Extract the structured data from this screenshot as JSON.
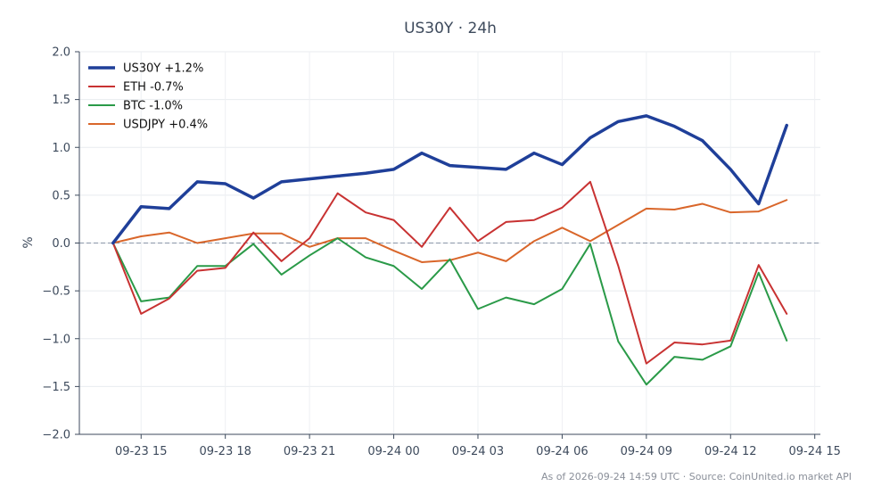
{
  "chart_data": {
    "type": "line",
    "title": "US30Y · 24h",
    "ylabel": "%",
    "xlabel": "",
    "ylim": [
      -2.0,
      2.0
    ],
    "yticks": [
      -2.0,
      -1.5,
      -1.0,
      -0.5,
      0.0,
      0.5,
      1.0,
      1.5,
      2.0
    ],
    "ytick_labels": [
      "−2.0",
      "−1.5",
      "−1.0",
      "−0.5",
      "0.0",
      "0.5",
      "1.0",
      "1.5",
      "2.0"
    ],
    "xlim": [
      "2026-09-23 12:48",
      "2026-09-24 15:12"
    ],
    "xticks": [
      "2026-09-23 15:00",
      "2026-09-23 18:00",
      "2026-09-23 21:00",
      "2026-09-24 00:00",
      "2026-09-24 03:00",
      "2026-09-24 06:00",
      "2026-09-24 09:00",
      "2026-09-24 12:00",
      "2026-09-24 15:00"
    ],
    "xtick_labels": [
      "09-23 15",
      "09-23 18",
      "09-23 21",
      "09-24 00",
      "09-24 03",
      "09-24 06",
      "09-24 09",
      "09-24 12",
      "09-24 15"
    ],
    "x": [
      "2026-09-23 14:00",
      "2026-09-23 15:00",
      "2026-09-23 16:00",
      "2026-09-23 17:00",
      "2026-09-23 18:00",
      "2026-09-23 19:00",
      "2026-09-23 20:00",
      "2026-09-23 21:00",
      "2026-09-23 22:00",
      "2026-09-23 23:00",
      "2026-09-24 00:00",
      "2026-09-24 01:00",
      "2026-09-24 02:00",
      "2026-09-24 03:00",
      "2026-09-24 04:00",
      "2026-09-24 05:00",
      "2026-09-24 06:00",
      "2026-09-24 07:00",
      "2026-09-24 08:00",
      "2026-09-24 09:00",
      "2026-09-24 10:00",
      "2026-09-24 11:00",
      "2026-09-24 12:00",
      "2026-09-24 13:00",
      "2026-09-24 14:00"
    ],
    "series": [
      {
        "name": "US30Y +1.2%",
        "color": "#1f3f99",
        "width": 3.5,
        "values": [
          0.0,
          0.38,
          0.36,
          0.64,
          0.62,
          0.47,
          0.64,
          0.67,
          0.7,
          0.73,
          0.77,
          0.94,
          0.81,
          0.79,
          0.77,
          0.94,
          0.82,
          1.1,
          1.27,
          1.33,
          1.22,
          1.07,
          0.77,
          0.41,
          1.23
        ]
      },
      {
        "name": "ETH -0.7%",
        "color": "#c83232",
        "width": 2,
        "values": [
          0.0,
          -0.74,
          -0.58,
          -0.29,
          -0.26,
          0.11,
          -0.19,
          0.05,
          0.52,
          0.32,
          0.24,
          -0.04,
          0.37,
          0.02,
          0.22,
          0.24,
          0.37,
          0.64,
          -0.24,
          -1.26,
          -1.04,
          -1.06,
          -1.02,
          -0.23,
          -0.74
        ]
      },
      {
        "name": "BTC -1.0%",
        "color": "#2a9a48",
        "width": 2,
        "values": [
          0.0,
          -0.61,
          -0.57,
          -0.24,
          -0.24,
          -0.01,
          -0.33,
          -0.13,
          0.05,
          -0.15,
          -0.24,
          -0.48,
          -0.17,
          -0.69,
          -0.57,
          -0.64,
          -0.48,
          -0.01,
          -1.03,
          -1.48,
          -1.19,
          -1.22,
          -1.08,
          -0.31,
          -1.02
        ]
      },
      {
        "name": "USDJPY +0.4%",
        "color": "#d9662a",
        "width": 2,
        "values": [
          0.0,
          0.07,
          0.11,
          0.0,
          0.05,
          0.1,
          0.1,
          -0.04,
          0.05,
          0.05,
          -0.08,
          -0.2,
          -0.18,
          -0.1,
          -0.19,
          0.02,
          0.16,
          0.02,
          0.19,
          0.36,
          0.35,
          0.41,
          0.32,
          0.33,
          0.45
        ]
      }
    ],
    "legend_position": "top-left",
    "grid": true,
    "zero_line": true,
    "footer": "As of 2026-09-24 14:59 UTC · Source: CoinUnited.io market API"
  }
}
